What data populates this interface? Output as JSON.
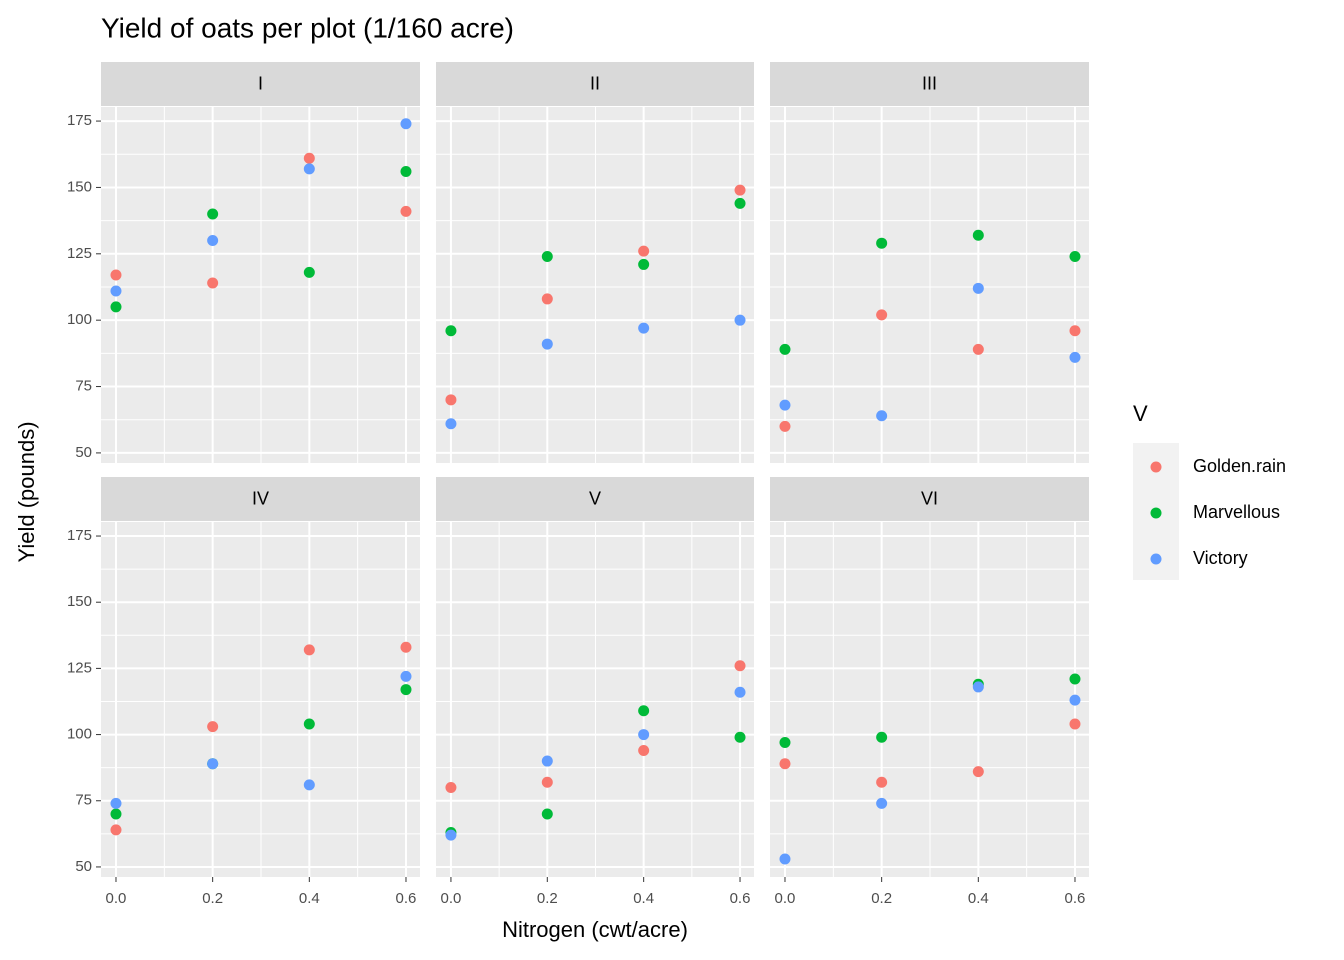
{
  "chart_data": {
    "type": "scatter",
    "title": "Yield of oats per plot (1/160 acre)",
    "x_label": "Nitrogen (cwt/acre)",
    "y_label": "Yield (pounds)",
    "legend_title": "V",
    "legend_position": "right",
    "grid": true,
    "xlim": [
      -0.031,
      0.629
    ],
    "ylim": [
      46.2,
      180.3
    ],
    "xticks": [
      {
        "value": 0,
        "label": "0.0"
      },
      0.2,
      0.4,
      0.6
    ],
    "yticks": [
      50,
      75,
      100,
      125,
      150,
      175
    ],
    "series": [
      {
        "name": "Golden.rain",
        "color": "#F8766D"
      },
      {
        "name": "Marvellous",
        "color": "#00BA38"
      },
      {
        "name": "Victory",
        "color": "#619CFF"
      }
    ],
    "panels": [
      {
        "title": "I",
        "x": [
          0,
          0.2,
          0.4,
          0.6
        ],
        "values": [
          [
            117,
            114,
            161,
            141
          ],
          [
            105,
            140,
            118,
            156
          ],
          [
            111,
            130,
            157,
            174
          ]
        ]
      },
      {
        "title": "II",
        "x": [
          0,
          0.2,
          0.4,
          0.6
        ],
        "values": [
          [
            70,
            108,
            126,
            149
          ],
          [
            96,
            124,
            121,
            144
          ],
          [
            61,
            91,
            97,
            100
          ]
        ]
      },
      {
        "title": "III",
        "x": [
          0,
          0.2,
          0.4,
          0.6
        ],
        "values": [
          [
            60,
            102,
            89,
            96
          ],
          [
            89,
            129,
            132,
            124
          ],
          [
            68,
            64,
            112,
            86
          ]
        ]
      },
      {
        "title": "IV",
        "x": [
          0,
          0.2,
          0.4,
          0.6
        ],
        "values": [
          [
            64,
            103,
            132,
            133
          ],
          [
            70,
            89,
            104,
            117
          ],
          [
            74,
            89,
            81,
            122
          ]
        ]
      },
      {
        "title": "V",
        "x": [
          0,
          0.2,
          0.4,
          0.6
        ],
        "values": [
          [
            80,
            82,
            94,
            126
          ],
          [
            63,
            70,
            109,
            99
          ],
          [
            62,
            90,
            100,
            116
          ]
        ]
      },
      {
        "title": "VI",
        "x": [
          0,
          0.2,
          0.4,
          0.6
        ],
        "values": [
          [
            89,
            82,
            86,
            104
          ],
          [
            97,
            99,
            119,
            121
          ],
          [
            53,
            74,
            118,
            113
          ]
        ]
      }
    ]
  }
}
